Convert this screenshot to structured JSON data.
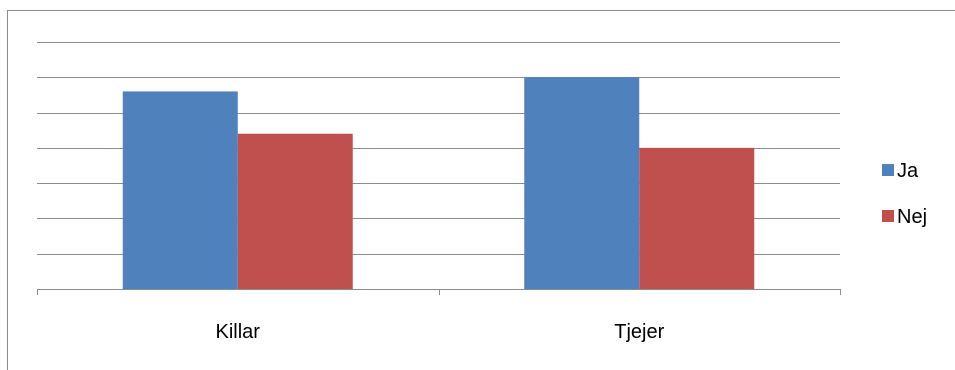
{
  "chart_data": {
    "type": "bar",
    "categories": [
      "Killar",
      "Tjejer"
    ],
    "series": [
      {
        "name": "Ja",
        "color": "#4f81bd",
        "values": [
          5.6,
          6.0
        ]
      },
      {
        "name": "Nej",
        "color": "#c0504d",
        "values": [
          4.4,
          4.0
        ]
      }
    ],
    "ylim": [
      0,
      7
    ],
    "grid": true,
    "legend": "right",
    "title": "",
    "xlabel": "",
    "ylabel": ""
  }
}
